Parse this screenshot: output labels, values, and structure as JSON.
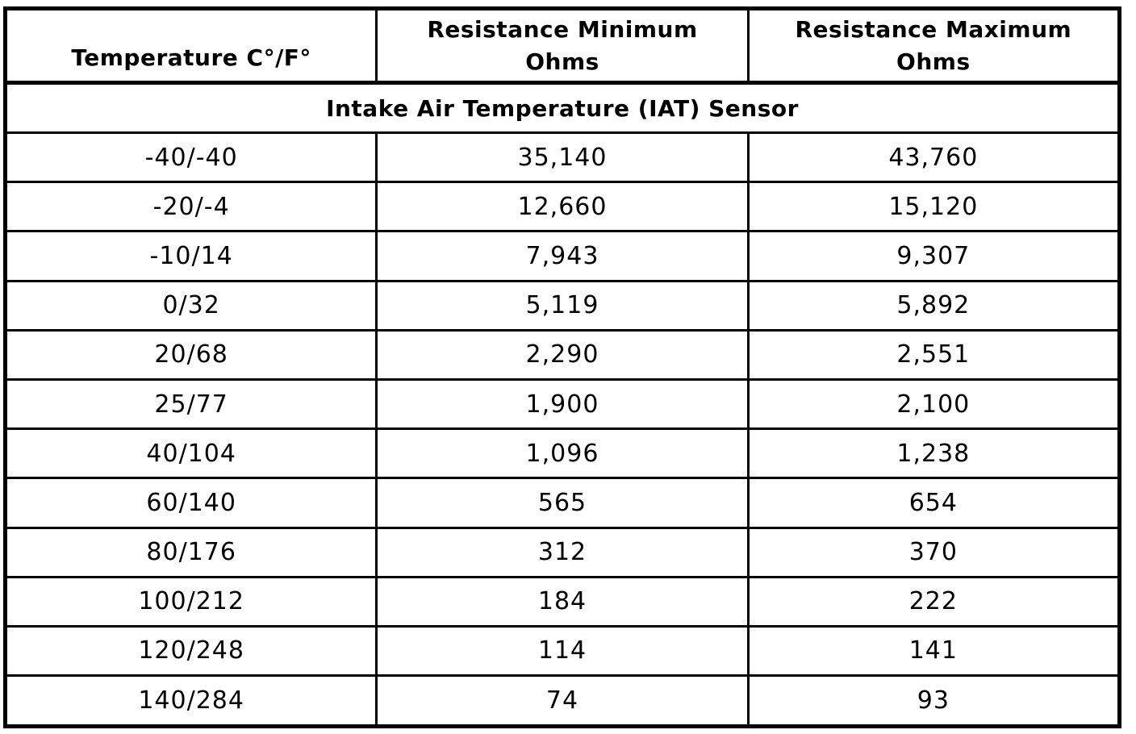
{
  "page": {
    "background_color": "#ffffff",
    "border_color": "#000000",
    "text_color": "#000000"
  },
  "table": {
    "columns": {
      "temperature": "Temperature C°/F°",
      "resistance_min": "Resistance Minimum\nOhms",
      "resistance_max": "Resistance Maximum\nOhms"
    },
    "section_title": "Intake Air Temperature (IAT) Sensor",
    "rows": [
      {
        "temp": "-40/-40",
        "min": "35,140",
        "max": "43,760"
      },
      {
        "temp": "-20/-4",
        "min": "12,660",
        "max": "15,120"
      },
      {
        "temp": "-10/14",
        "min": "7,943",
        "max": "9,307"
      },
      {
        "temp": "0/32",
        "min": "5,119",
        "max": "5,892"
      },
      {
        "temp": "20/68",
        "min": "2,290",
        "max": "2,551"
      },
      {
        "temp": "25/77",
        "min": "1,900",
        "max": "2,100"
      },
      {
        "temp": "40/104",
        "min": "1,096",
        "max": "1,238"
      },
      {
        "temp": "60/140",
        "min": "565",
        "max": "654"
      },
      {
        "temp": "80/176",
        "min": "312",
        "max": "370"
      },
      {
        "temp": "100/212",
        "min": "184",
        "max": "222"
      },
      {
        "temp": "120/248",
        "min": "114",
        "max": "141"
      },
      {
        "temp": "140/284",
        "min": "74",
        "max": "93"
      }
    ]
  }
}
